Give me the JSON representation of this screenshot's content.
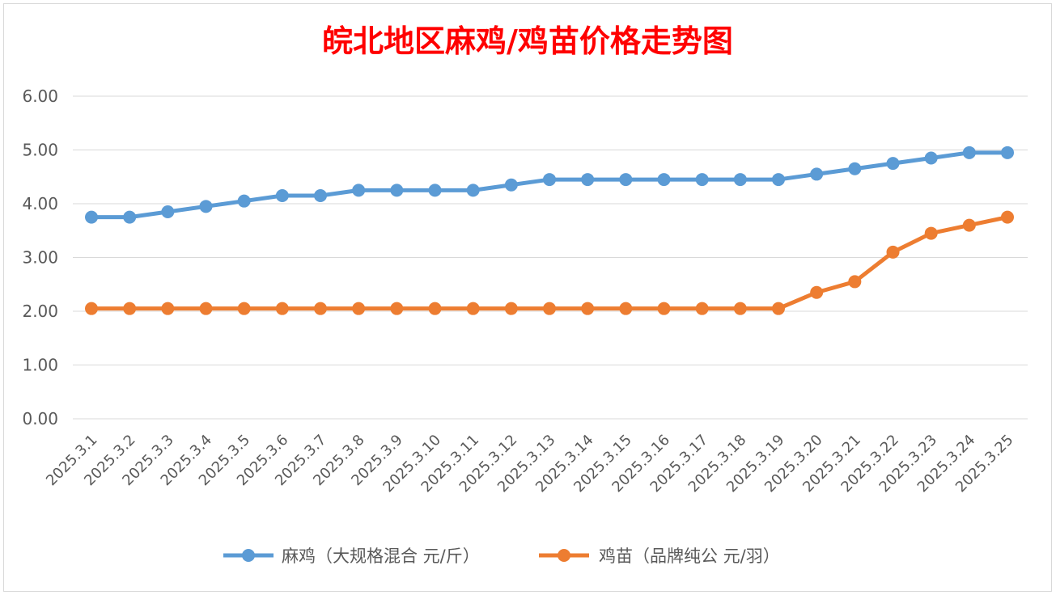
{
  "chart_data": {
    "type": "line",
    "title": "皖北地区麻鸡/鸡苗价格走势图",
    "xlabel": "",
    "ylabel": "",
    "ylim": [
      0,
      6
    ],
    "yticks": [
      "0.00",
      "1.00",
      "2.00",
      "3.00",
      "4.00",
      "5.00",
      "6.00"
    ],
    "grid": true,
    "legend_position": "bottom",
    "categories": [
      "2025.3.1",
      "2025.3.2",
      "2025.3.3",
      "2025.3.4",
      "2025.3.5",
      "2025.3.6",
      "2025.3.7",
      "2025.3.8",
      "2025.3.9",
      "2025.3.10",
      "2025.3.11",
      "2025.3.12",
      "2025.3.13",
      "2025.3.14",
      "2025.3.15",
      "2025.3.16",
      "2025.3.17",
      "2025.3.18",
      "2025.3.19",
      "2025.3.20",
      "2025.3.21",
      "2025.3.22",
      "2025.3.23",
      "2025.3.24",
      "2025.3.25"
    ],
    "series": [
      {
        "name": "麻鸡（大规格混合 元/斤）",
        "color": "#5b9bd5",
        "values": [
          3.75,
          3.75,
          3.85,
          3.95,
          4.05,
          4.15,
          4.15,
          4.25,
          4.25,
          4.25,
          4.25,
          4.35,
          4.45,
          4.45,
          4.45,
          4.45,
          4.45,
          4.45,
          4.45,
          4.55,
          4.65,
          4.75,
          4.85,
          4.95,
          4.95
        ]
      },
      {
        "name": "鸡苗（品牌纯公 元/羽）",
        "color": "#ed7d31",
        "values": [
          2.05,
          2.05,
          2.05,
          2.05,
          2.05,
          2.05,
          2.05,
          2.05,
          2.05,
          2.05,
          2.05,
          2.05,
          2.05,
          2.05,
          2.05,
          2.05,
          2.05,
          2.05,
          2.05,
          2.35,
          2.55,
          3.1,
          3.45,
          3.6,
          3.75
        ]
      }
    ]
  }
}
